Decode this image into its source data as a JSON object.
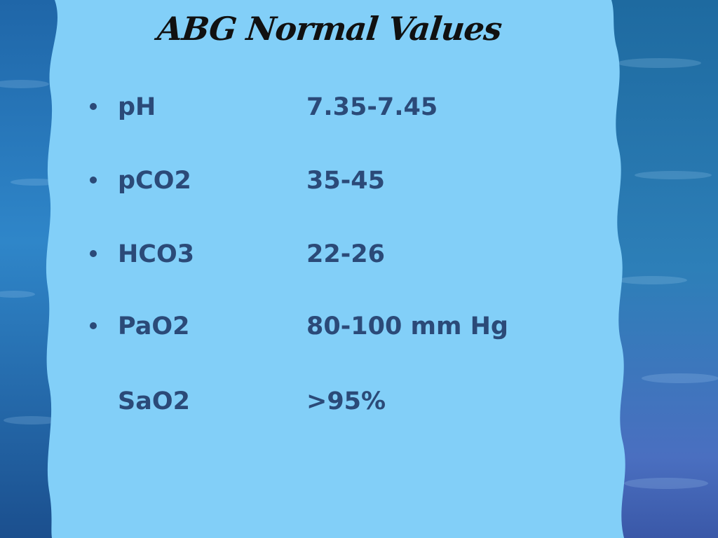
{
  "slide": {
    "title": "ABG Normal Values",
    "colors": {
      "panel": "#82cff8",
      "text": "#2b4a78",
      "title": "#111111",
      "background": "#2a6fa8"
    },
    "rows": [
      {
        "bullet": true,
        "label": "pH",
        "value": "7.35-7.45"
      },
      {
        "bullet": true,
        "label": "pCO2",
        "value": "35-45"
      },
      {
        "bullet": true,
        "label": "HCO3",
        "value": "22-26"
      },
      {
        "bullet": true,
        "label": "PaO2",
        "value": "80-100 mm Hg"
      },
      {
        "bullet": false,
        "label": "SaO2",
        "value": ">95%"
      }
    ]
  }
}
